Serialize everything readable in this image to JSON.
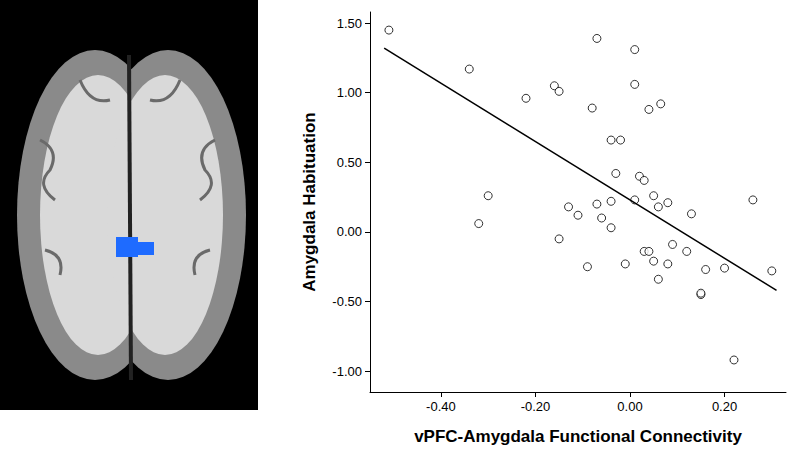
{
  "chart_data": {
    "type": "scatter",
    "x_label": "vPFC-Amygdala Functional Connectivity",
    "y_label": "Amygdala Habituation",
    "xlim": [
      -0.55,
      0.33
    ],
    "ylim": [
      -1.15,
      1.58
    ],
    "xticks": [
      {
        "value": -0.4,
        "label": "-0.40"
      },
      {
        "value": -0.2,
        "label": "-0.20"
      },
      {
        "value": 0,
        "label": "0.00"
      },
      {
        "value": 0.2,
        "label": "0.20"
      }
    ],
    "yticks": [
      {
        "value": -1,
        "label": "-1.00"
      },
      {
        "value": -0.5,
        "label": "-0.50"
      },
      {
        "value": 0,
        "label": "0.00"
      },
      {
        "value": 0.5,
        "label": "0.50"
      },
      {
        "value": 1,
        "label": "1.00"
      },
      {
        "value": 1.5,
        "label": "1.50"
      }
    ],
    "grid": false,
    "series": [
      {
        "type": "scatter",
        "marker": "circle",
        "color": "#000000",
        "x": [
          -0.51,
          -0.34,
          -0.32,
          -0.3,
          -0.22,
          -0.16,
          -0.15,
          -0.15,
          -0.13,
          -0.11,
          -0.09,
          -0.08,
          -0.07,
          -0.07,
          -0.06,
          -0.04,
          -0.04,
          -0.04,
          -0.03,
          -0.02,
          -0.01,
          0.01,
          0.01,
          0.01,
          0.02,
          0.03,
          0.03,
          0.04,
          0.04,
          0.05,
          0.05,
          0.06,
          0.06,
          0.065,
          0.08,
          0.08,
          0.09,
          0.12,
          0.13,
          0.15,
          0.15,
          0.16,
          0.2,
          0.22,
          0.26,
          0.3
        ],
        "values": [
          1.45,
          1.17,
          0.06,
          0.26,
          0.96,
          1.05,
          1.01,
          -0.05,
          0.18,
          0.12,
          -0.25,
          0.89,
          1.39,
          0.2,
          0.1,
          0.66,
          0.22,
          0.03,
          0.42,
          0.66,
          -0.23,
          1.31,
          1.06,
          0.23,
          0.4,
          0.37,
          -0.14,
          -0.14,
          0.88,
          0.26,
          -0.21,
          0.18,
          -0.34,
          0.92,
          0.21,
          -0.23,
          -0.09,
          -0.14,
          0.13,
          -0.45,
          -0.44,
          -0.27,
          -0.26,
          -0.92,
          0.23,
          -0.28
        ]
      },
      {
        "type": "line",
        "line_style": "solid",
        "color": "#000000",
        "x": [
          -0.52,
          0.31
        ],
        "values": [
          1.32,
          -0.42
        ]
      }
    ]
  }
}
